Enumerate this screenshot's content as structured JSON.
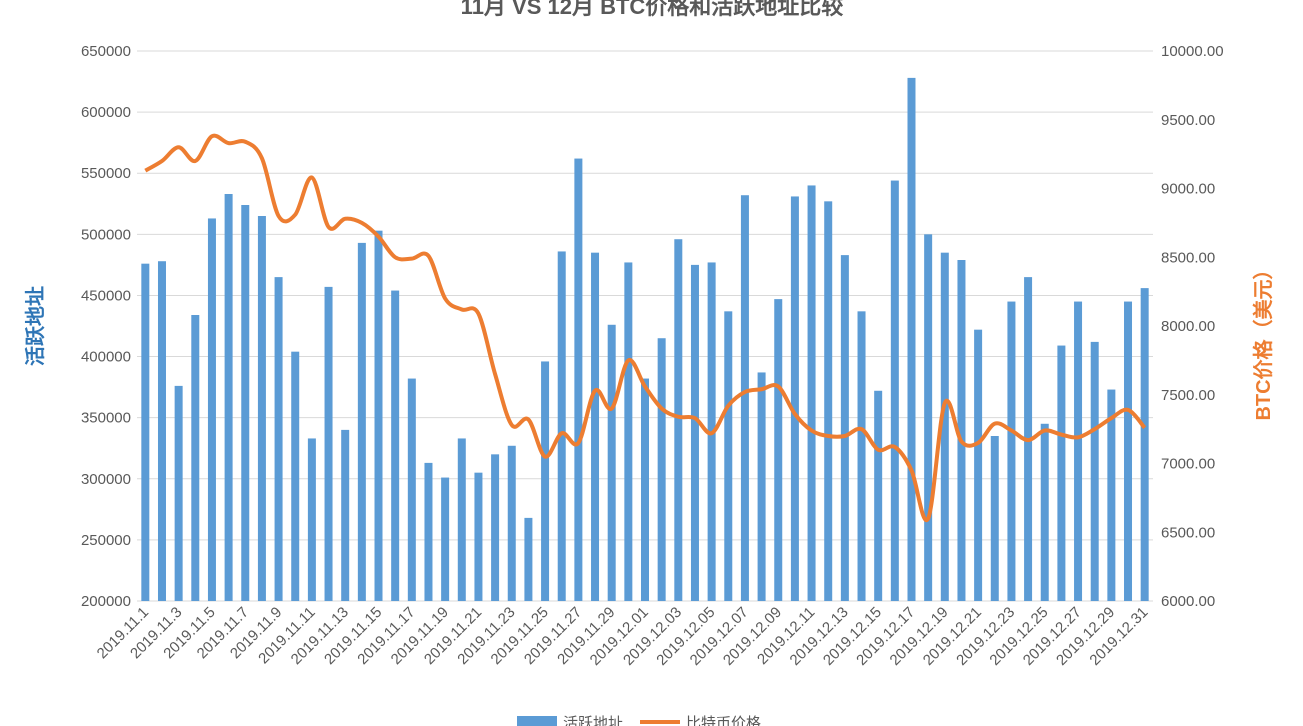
{
  "chart_data": {
    "type": "bar+line",
    "title": "11月 VS 12月 BTC价格和活跃地址比较",
    "ylabel_left": "活跃地址",
    "ylabel_right": "BTC价格（美元）",
    "ylim_left": [
      200000,
      650000
    ],
    "ylim_right": [
      6000,
      10000
    ],
    "yticks_left": [
      "200000",
      "250000",
      "300000",
      "350000",
      "400000",
      "450000",
      "500000",
      "550000",
      "600000",
      "650000"
    ],
    "yticks_right": [
      "6000.00",
      "6500.00",
      "7000.00",
      "7500.00",
      "8000.00",
      "8500.00",
      "9000.00",
      "9500.00",
      "10000.00"
    ],
    "categories": [
      "2019.11.1",
      "2019.11.2",
      "2019.11.3",
      "2019.11.4",
      "2019.11.5",
      "2019.11.6",
      "2019.11.7",
      "2019.11.8",
      "2019.11.9",
      "2019.11.10",
      "2019.11.11",
      "2019.11.12",
      "2019.11.13",
      "2019.11.14",
      "2019.11.15",
      "2019.11.16",
      "2019.11.17",
      "2019.11.18",
      "2019.11.19",
      "2019.11.20",
      "2019.11.21",
      "2019.11.22",
      "2019.11.23",
      "2019.11.24",
      "2019.11.25",
      "2019.11.26",
      "2019.11.27",
      "2019.11.28",
      "2019.11.29",
      "2019.11.30",
      "2019.12.01",
      "2019.12.02",
      "2019.12.03",
      "2019.12.04",
      "2019.12.05",
      "2019.12.06",
      "2019.12.07",
      "2019.12.08",
      "2019.12.09",
      "2019.12.10",
      "2019.12.11",
      "2019.12.12",
      "2019.12.13",
      "2019.12.14",
      "2019.12.15",
      "2019.12.16",
      "2019.12.17",
      "2019.12.18",
      "2019.12.19",
      "2019.12.20",
      "2019.12.21",
      "2019.12.22",
      "2019.12.23",
      "2019.12.24",
      "2019.12.25",
      "2019.12.26",
      "2019.12.27",
      "2019.12.28",
      "2019.12.29",
      "2019.12.30",
      "2019.12.31"
    ],
    "series": [
      {
        "name": "活跃地址",
        "axis": "left",
        "type": "bar",
        "color": "#5B9BD5",
        "values": [
          476000,
          478000,
          376000,
          434000,
          513000,
          533000,
          524000,
          515000,
          465000,
          404000,
          333000,
          457000,
          340000,
          493000,
          503000,
          454000,
          382000,
          313000,
          301000,
          333000,
          305000,
          320000,
          327000,
          268000,
          396000,
          486000,
          562000,
          485000,
          426000,
          477000,
          382000,
          415000,
          496000,
          475000,
          477000,
          437000,
          532000,
          387000,
          447000,
          531000,
          540000,
          527000,
          483000,
          437000,
          372000,
          544000,
          628000,
          500000,
          485000,
          479000,
          422000,
          335000,
          445000,
          465000,
          345000,
          409000,
          445000,
          412000,
          373000,
          445000,
          456000
        ]
      },
      {
        "name": "比特币价格",
        "axis": "right",
        "type": "line",
        "color": "#ED7D31",
        "values": [
          9130,
          9200,
          9300,
          9200,
          9380,
          9330,
          9340,
          9220,
          8800,
          8810,
          9080,
          8720,
          8780,
          8750,
          8650,
          8500,
          8490,
          8510,
          8200,
          8120,
          8090,
          7650,
          7280,
          7320,
          7050,
          7220,
          7150,
          7530,
          7400,
          7750,
          7560,
          7400,
          7340,
          7330,
          7220,
          7420,
          7520,
          7540,
          7560,
          7360,
          7240,
          7200,
          7200,
          7250,
          7100,
          7120,
          6950,
          6600,
          7440,
          7160,
          7150,
          7290,
          7240,
          7170,
          7240,
          7210,
          7190,
          7250,
          7330,
          7390,
          7260
        ]
      }
    ],
    "legend": "bottom"
  }
}
